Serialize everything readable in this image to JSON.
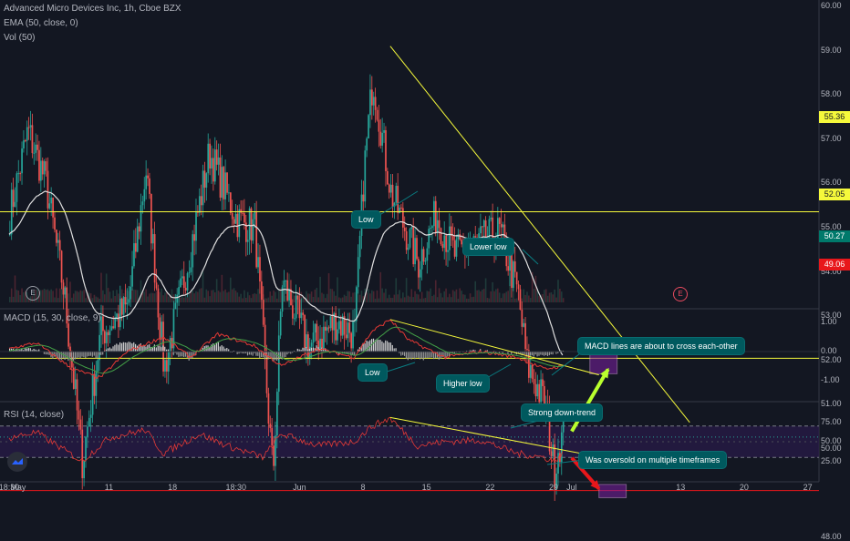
{
  "chart_data": [
    {
      "type": "candlestick",
      "title": "Advanced Micro Devices Inc, 1h, Cboe BZX",
      "indicators": {
        "ema": "EMA (50, close, 0)",
        "volume": "Vol (50)"
      },
      "y_ticks": [
        "60.00",
        "59.00",
        "58.00",
        "57.00",
        "56.00",
        "55.00",
        "54.00",
        "53.00",
        "52.00",
        "51.00",
        "50.00",
        "48.00"
      ],
      "ylim": [
        47.6,
        60.2
      ],
      "x_ticks": [
        {
          "label": "18:30",
          "day": -1
        },
        {
          "label": "May",
          "day": 0
        },
        {
          "label": "11",
          "day": 10
        },
        {
          "label": "18",
          "day": 17
        },
        {
          "label": "18:30",
          "day": 24
        },
        {
          "label": "Jun",
          "day": 31
        },
        {
          "label": "8",
          "day": 38
        },
        {
          "label": "15",
          "day": 45
        },
        {
          "label": "22",
          "day": 52
        },
        {
          "label": "29",
          "day": 59
        },
        {
          "label": "Jul",
          "day": 61
        },
        {
          "label": "13",
          "day": 73
        },
        {
          "label": "20",
          "day": 80
        },
        {
          "label": "27",
          "day": 87
        }
      ],
      "price_anchors": [
        {
          "day": -1,
          "price": 55.3
        },
        {
          "day": 1,
          "price": 57.2
        },
        {
          "day": 3,
          "price": 56.0
        },
        {
          "day": 5,
          "price": 53.5
        },
        {
          "day": 7,
          "price": 49.7
        },
        {
          "day": 9,
          "price": 52.6
        },
        {
          "day": 12,
          "price": 53.2
        },
        {
          "day": 14,
          "price": 56.3
        },
        {
          "day": 16,
          "price": 51.8
        },
        {
          "day": 19,
          "price": 54.6
        },
        {
          "day": 21,
          "price": 56.7
        },
        {
          "day": 24,
          "price": 55.2
        },
        {
          "day": 26,
          "price": 55.0
        },
        {
          "day": 28,
          "price": 49.4
        },
        {
          "day": 29,
          "price": 53.8
        },
        {
          "day": 32,
          "price": 52.3
        },
        {
          "day": 35,
          "price": 52.9
        },
        {
          "day": 37,
          "price": 52.6
        },
        {
          "day": 38,
          "price": 56.2
        },
        {
          "day": 39,
          "price": 58.4
        },
        {
          "day": 41,
          "price": 55.8
        },
        {
          "day": 44,
          "price": 54.2
        },
        {
          "day": 46,
          "price": 55.3
        },
        {
          "day": 48,
          "price": 54.4
        },
        {
          "day": 51,
          "price": 54.7
        },
        {
          "day": 53,
          "price": 54.9
        },
        {
          "day": 55,
          "price": 53.5
        },
        {
          "day": 56,
          "price": 51.9
        },
        {
          "day": 58,
          "price": 51.0
        },
        {
          "day": 59,
          "price": 49.5
        },
        {
          "day": 59.5,
          "price": 50.1
        },
        {
          "day": 60,
          "price": 50.27
        }
      ],
      "last_price_label": "50.27",
      "levels": [
        {
          "label": "55.36",
          "price": 55.36,
          "color": "#f5f93b"
        },
        {
          "label": "52.05",
          "price": 52.05,
          "color": "#f5f93b"
        },
        {
          "label": "49.06",
          "price": 49.06,
          "color": "#e8171b"
        }
      ],
      "trendline": {
        "from": {
          "day": 41,
          "price": 59.1
        },
        "to": {
          "day": 74,
          "price": 50.6
        },
        "color": "#f5f93b"
      },
      "targets": [
        {
          "day_from": 63,
          "day_to": 66,
          "price_from": 51.7,
          "price_to": 52.4,
          "color": "#9c27b0"
        },
        {
          "day_from": 64,
          "day_to": 67,
          "price_from": 48.9,
          "price_to": 49.2,
          "color": "#9c27b0"
        }
      ],
      "arrows": [
        {
          "from": {
            "day": 61,
            "price": 50.4
          },
          "to": {
            "day": 65,
            "price": 51.8
          },
          "color": "#b9ff2e"
        },
        {
          "from": {
            "day": 61,
            "price": 49.8
          },
          "to": {
            "day": 64,
            "price": 49.1
          },
          "color": "#e8171b"
        }
      ],
      "markers": [
        "E",
        "E"
      ],
      "annotations": [
        "Low",
        "Lower low"
      ]
    },
    {
      "type": "line",
      "title": "MACD (15, 30, close, 9)",
      "y_ticks": [
        "1.00",
        "0.00",
        "-1.00"
      ],
      "ylim": [
        -1.3,
        1.3
      ],
      "macd_anchors": [
        {
          "day": -1,
          "value": 0.1
        },
        {
          "day": 2,
          "value": 0.3
        },
        {
          "day": 6,
          "value": -0.6
        },
        {
          "day": 9,
          "value": -0.9
        },
        {
          "day": 12,
          "value": 0.0
        },
        {
          "day": 16,
          "value": 0.5
        },
        {
          "day": 19,
          "value": -0.2
        },
        {
          "day": 22,
          "value": 0.6
        },
        {
          "day": 26,
          "value": 0.2
        },
        {
          "day": 29,
          "value": -0.5
        },
        {
          "day": 33,
          "value": 0.1
        },
        {
          "day": 37,
          "value": -0.2
        },
        {
          "day": 39,
          "value": 0.7
        },
        {
          "day": 41,
          "value": 1.1
        },
        {
          "day": 43,
          "value": 0.4
        },
        {
          "day": 47,
          "value": -0.2
        },
        {
          "day": 51,
          "value": 0.0
        },
        {
          "day": 55,
          "value": -0.2
        },
        {
          "day": 58,
          "value": -0.6
        },
        {
          "day": 60,
          "value": -0.5
        }
      ],
      "trendline": {
        "from": {
          "day": 41,
          "value": 1.1
        },
        "to": {
          "day": 64,
          "value": -0.8
        },
        "color": "#f5f93b"
      },
      "annotations": [
        "Low",
        "Higher low",
        "MACD lines are about to cross each-other"
      ]
    },
    {
      "type": "line",
      "title": "RSI (14, close)",
      "y_ticks": [
        "75.00",
        "50.00",
        "25.00"
      ],
      "ylim": [
        10,
        90
      ],
      "bands": [
        30,
        70
      ],
      "rsi_anchors": [
        {
          "day": -1,
          "value": 55
        },
        {
          "day": 2,
          "value": 62
        },
        {
          "day": 5,
          "value": 40
        },
        {
          "day": 7,
          "value": 25
        },
        {
          "day": 10,
          "value": 55
        },
        {
          "day": 14,
          "value": 65
        },
        {
          "day": 16,
          "value": 35
        },
        {
          "day": 20,
          "value": 60
        },
        {
          "day": 23,
          "value": 45
        },
        {
          "day": 27,
          "value": 30
        },
        {
          "day": 29,
          "value": 60
        },
        {
          "day": 33,
          "value": 45
        },
        {
          "day": 37,
          "value": 50
        },
        {
          "day": 39,
          "value": 70
        },
        {
          "day": 41,
          "value": 80
        },
        {
          "day": 44,
          "value": 45
        },
        {
          "day": 47,
          "value": 50
        },
        {
          "day": 51,
          "value": 52
        },
        {
          "day": 55,
          "value": 35
        },
        {
          "day": 58,
          "value": 30
        },
        {
          "day": 59,
          "value": 25
        },
        {
          "day": 60,
          "value": 35
        }
      ],
      "trendline": {
        "from": {
          "day": 41,
          "value": 81
        },
        "to": {
          "day": 63,
          "value": 33
        },
        "color": "#f5f93b"
      },
      "annotations": [
        "Strong down-trend",
        "Was oversold on multiple timeframes"
      ]
    }
  ]
}
